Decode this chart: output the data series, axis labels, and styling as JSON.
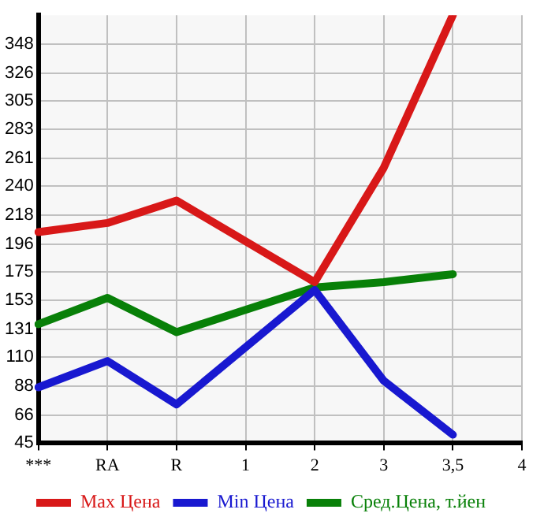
{
  "chart_data": {
    "type": "line",
    "categories": [
      "***",
      "RA",
      "R",
      "1",
      "2",
      "3",
      "3,5",
      "4"
    ],
    "series": [
      {
        "name": "Max Цена",
        "color": "#d81818",
        "values": [
          205,
          212,
          229,
          null,
          167,
          254,
          370,
          null
        ]
      },
      {
        "name": "Min Цена",
        "color": "#1818d0",
        "values": [
          87,
          107,
          74,
          null,
          161,
          92,
          51,
          null
        ]
      },
      {
        "name": "Сред.Цена, т.йен",
        "color": "#088008",
        "values": [
          135,
          155,
          129,
          null,
          163,
          167,
          173,
          null
        ]
      }
    ],
    "ylim": [
      45,
      370
    ],
    "yticks": [
      45,
      66,
      88,
      110,
      131,
      153,
      175,
      196,
      218,
      240,
      261,
      283,
      305,
      326,
      348
    ],
    "grid": true,
    "legend": "bottom",
    "marker": "none",
    "line_style": "solid"
  }
}
